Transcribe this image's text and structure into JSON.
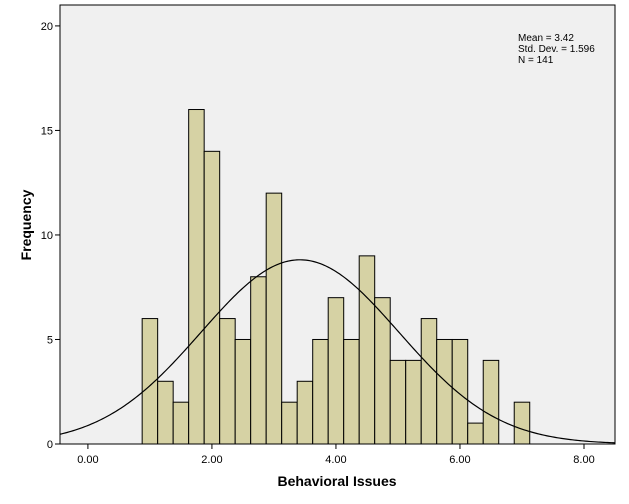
{
  "chart_data": {
    "type": "bar",
    "subtype": "histogram",
    "xlabel": "Behavioral Issues",
    "ylabel": "Frequency",
    "xlim": [
      -0.45,
      8.5
    ],
    "ylim": [
      0,
      21
    ],
    "x_ticks": [
      "0.00",
      "2.00",
      "4.00",
      "6.00",
      "8.00"
    ],
    "x_tick_values": [
      0,
      2,
      4,
      6,
      8
    ],
    "y_ticks": [
      "0",
      "5",
      "10",
      "15",
      "20"
    ],
    "y_tick_values": [
      0,
      5,
      10,
      15,
      20
    ],
    "bin_width": 0.25,
    "bins": [
      {
        "start": 0.875,
        "count": 6
      },
      {
        "start": 1.125,
        "count": 3
      },
      {
        "start": 1.375,
        "count": 2
      },
      {
        "start": 1.625,
        "count": 16
      },
      {
        "start": 1.875,
        "count": 14
      },
      {
        "start": 2.125,
        "count": 6
      },
      {
        "start": 2.375,
        "count": 5
      },
      {
        "start": 2.625,
        "count": 8
      },
      {
        "start": 2.875,
        "count": 12
      },
      {
        "start": 3.125,
        "count": 2
      },
      {
        "start": 3.375,
        "count": 3
      },
      {
        "start": 3.625,
        "count": 5
      },
      {
        "start": 3.875,
        "count": 7
      },
      {
        "start": 4.125,
        "count": 5
      },
      {
        "start": 4.375,
        "count": 9
      },
      {
        "start": 4.625,
        "count": 7
      },
      {
        "start": 4.875,
        "count": 4
      },
      {
        "start": 5.125,
        "count": 4
      },
      {
        "start": 5.375,
        "count": 6
      },
      {
        "start": 5.625,
        "count": 5
      },
      {
        "start": 5.875,
        "count": 5
      },
      {
        "start": 6.125,
        "count": 1
      },
      {
        "start": 6.375,
        "count": 4
      },
      {
        "start": 6.875,
        "count": 2
      }
    ],
    "normal_curve": {
      "mean": 3.42,
      "std_dev": 1.596,
      "n": 141
    },
    "stats_lines": [
      "Mean = 3.42",
      "Std. Dev. = 1.596",
      "N = 141"
    ],
    "grid": false,
    "bar_color": "#d6d2a4",
    "bar_edge_color": "#000000",
    "plot_background": "#f0f0f0"
  }
}
